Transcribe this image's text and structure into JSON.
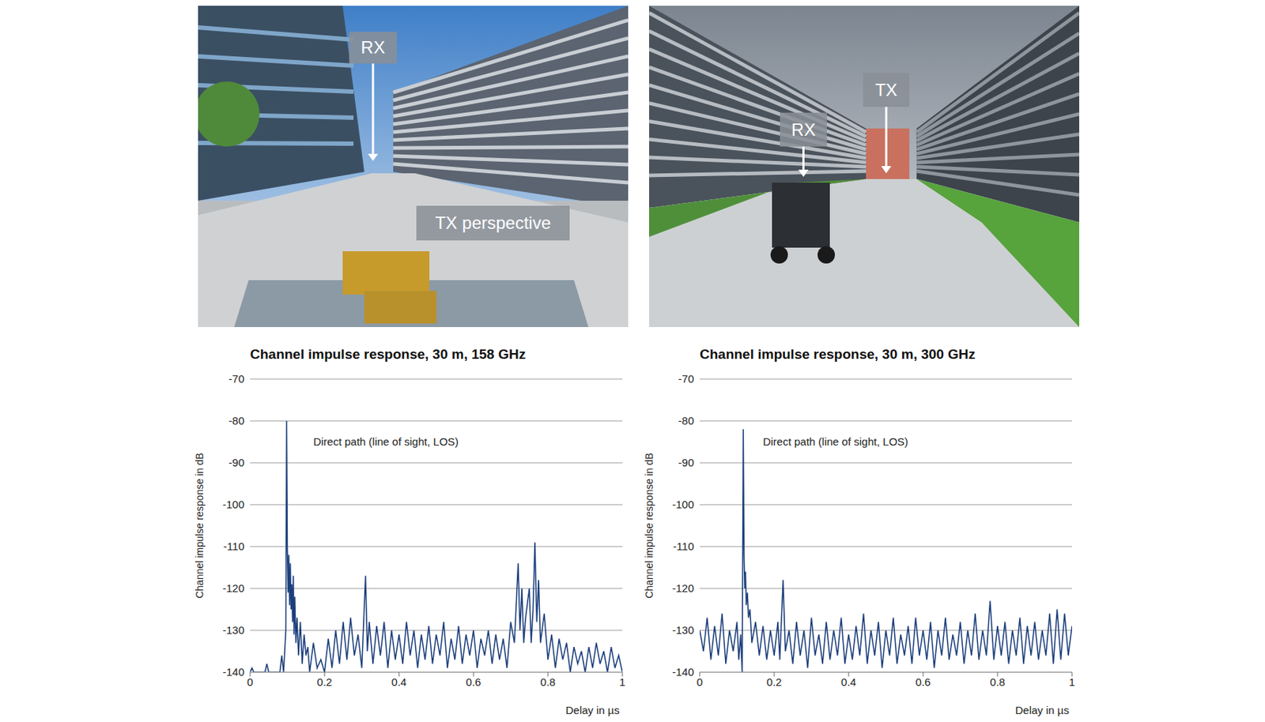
{
  "photos": [
    {
      "labels": [
        "RX",
        "TX perspective"
      ]
    },
    {
      "labels": [
        "RX",
        "TX"
      ]
    }
  ],
  "chart_data": [
    {
      "type": "line",
      "title": "Channel impulse response, 30 m, 158 GHz",
      "xlabel": "Delay in µs",
      "ylabel": "Channel impulse response in dB",
      "color": "#1c3f7c",
      "grid": true,
      "xlim": [
        0,
        1
      ],
      "xticks": [
        0,
        0.2,
        0.4,
        0.6,
        0.8,
        1
      ],
      "ylim": [
        -140,
        -70
      ],
      "yticks": [
        -140,
        -130,
        -120,
        -110,
        -100,
        -90,
        -80,
        -70
      ],
      "annotation": {
        "text": "Direct path (line of sight, LOS)",
        "x": 0.16,
        "y": -85
      },
      "x": [
        0,
        0.005,
        0.01,
        0.04,
        0.045,
        0.05,
        0.08,
        0.085,
        0.09,
        0.096,
        0.098,
        0.1,
        0.102,
        0.104,
        0.106,
        0.108,
        0.11,
        0.112,
        0.114,
        0.116,
        0.118,
        0.12,
        0.123,
        0.126,
        0.13,
        0.135,
        0.14,
        0.145,
        0.15,
        0.155,
        0.16,
        0.17,
        0.18,
        0.19,
        0.2,
        0.21,
        0.22,
        0.23,
        0.24,
        0.25,
        0.26,
        0.27,
        0.28,
        0.29,
        0.3,
        0.31,
        0.315,
        0.32,
        0.33,
        0.34,
        0.35,
        0.36,
        0.37,
        0.38,
        0.39,
        0.4,
        0.41,
        0.42,
        0.43,
        0.44,
        0.45,
        0.46,
        0.47,
        0.48,
        0.49,
        0.5,
        0.51,
        0.52,
        0.53,
        0.54,
        0.55,
        0.56,
        0.57,
        0.58,
        0.59,
        0.6,
        0.61,
        0.62,
        0.63,
        0.64,
        0.65,
        0.66,
        0.67,
        0.68,
        0.69,
        0.7,
        0.71,
        0.72,
        0.725,
        0.73,
        0.735,
        0.74,
        0.75,
        0.755,
        0.76,
        0.765,
        0.77,
        0.775,
        0.78,
        0.79,
        0.8,
        0.81,
        0.82,
        0.83,
        0.84,
        0.85,
        0.86,
        0.87,
        0.88,
        0.89,
        0.9,
        0.91,
        0.92,
        0.93,
        0.94,
        0.95,
        0.96,
        0.97,
        0.98,
        0.99,
        1
      ],
      "values": [
        -140,
        -139,
        -140,
        -140,
        -138,
        -140,
        -140,
        -136,
        -140,
        -130,
        -80,
        -110,
        -121,
        -112,
        -124,
        -114,
        -125,
        -119,
        -128,
        -117,
        -131,
        -122,
        -133,
        -127,
        -136,
        -128,
        -138,
        -131,
        -136,
        -134,
        -140,
        -133,
        -139,
        -137,
        -140,
        -132,
        -139,
        -130,
        -138,
        -128,
        -137,
        -127,
        -136,
        -131,
        -139,
        -117,
        -135,
        -128,
        -138,
        -129,
        -136,
        -128,
        -139,
        -130,
        -137,
        -131,
        -138,
        -128,
        -136,
        -130,
        -139,
        -131,
        -137,
        -129,
        -138,
        -131,
        -136,
        -128,
        -139,
        -132,
        -137,
        -129,
        -138,
        -131,
        -136,
        -130,
        -139,
        -132,
        -136,
        -130,
        -138,
        -131,
        -137,
        -132,
        -139,
        -128,
        -133,
        -114,
        -130,
        -120,
        -133,
        -127,
        -120,
        -133,
        -125,
        -109,
        -128,
        -118,
        -133,
        -126,
        -137,
        -131,
        -139,
        -132,
        -137,
        -133,
        -140,
        -134,
        -138,
        -135,
        -140,
        -134,
        -139,
        -133,
        -138,
        -135,
        -140,
        -134,
        -139,
        -136,
        -140
      ]
    },
    {
      "type": "line",
      "title": "Channel impulse response, 30 m, 300 GHz",
      "xlabel": "Delay in µs",
      "ylabel": "Channel impulse response in dB",
      "color": "#1c3f7c",
      "grid": true,
      "xlim": [
        0,
        1
      ],
      "xticks": [
        0,
        0.2,
        0.4,
        0.6,
        0.8,
        1
      ],
      "ylim": [
        -140,
        -70
      ],
      "yticks": [
        -140,
        -130,
        -120,
        -110,
        -100,
        -90,
        -80,
        -70
      ],
      "annotation": {
        "text": "Direct path (line of sight, LOS)",
        "x": 0.16,
        "y": -85
      },
      "x": [
        0,
        0.01,
        0.02,
        0.03,
        0.04,
        0.05,
        0.06,
        0.07,
        0.08,
        0.09,
        0.1,
        0.105,
        0.11,
        0.114,
        0.117,
        0.119,
        0.121,
        0.123,
        0.125,
        0.128,
        0.131,
        0.135,
        0.14,
        0.15,
        0.16,
        0.17,
        0.18,
        0.19,
        0.2,
        0.21,
        0.215,
        0.224,
        0.23,
        0.24,
        0.25,
        0.26,
        0.27,
        0.28,
        0.29,
        0.3,
        0.31,
        0.32,
        0.33,
        0.34,
        0.35,
        0.36,
        0.37,
        0.38,
        0.39,
        0.4,
        0.41,
        0.42,
        0.43,
        0.44,
        0.45,
        0.46,
        0.47,
        0.48,
        0.49,
        0.5,
        0.51,
        0.52,
        0.53,
        0.54,
        0.55,
        0.56,
        0.57,
        0.58,
        0.59,
        0.6,
        0.61,
        0.62,
        0.63,
        0.64,
        0.65,
        0.66,
        0.67,
        0.68,
        0.69,
        0.7,
        0.71,
        0.72,
        0.73,
        0.74,
        0.75,
        0.76,
        0.77,
        0.78,
        0.79,
        0.8,
        0.81,
        0.82,
        0.83,
        0.84,
        0.85,
        0.86,
        0.87,
        0.88,
        0.89,
        0.9,
        0.91,
        0.92,
        0.93,
        0.94,
        0.95,
        0.96,
        0.97,
        0.98,
        0.99,
        1
      ],
      "values": [
        -130,
        -135,
        -127,
        -137,
        -129,
        -136,
        -126,
        -138,
        -130,
        -135,
        -128,
        -137,
        -131,
        -140,
        -82,
        -112,
        -120,
        -116,
        -124,
        -121,
        -127,
        -125,
        -133,
        -128,
        -136,
        -129,
        -137,
        -130,
        -136,
        -128,
        -137,
        -118,
        -135,
        -130,
        -138,
        -128,
        -136,
        -130,
        -139,
        -127,
        -136,
        -131,
        -138,
        -128,
        -137,
        -130,
        -136,
        -127,
        -138,
        -131,
        -137,
        -129,
        -136,
        -126,
        -138,
        -130,
        -136,
        -128,
        -139,
        -130,
        -136,
        -127,
        -138,
        -131,
        -136,
        -129,
        -138,
        -127,
        -136,
        -130,
        -137,
        -128,
        -139,
        -130,
        -136,
        -127,
        -137,
        -131,
        -136,
        -128,
        -138,
        -130,
        -136,
        -126,
        -137,
        -130,
        -136,
        -123,
        -137,
        -129,
        -136,
        -128,
        -138,
        -130,
        -136,
        -127,
        -138,
        -129,
        -136,
        -128,
        -137,
        -130,
        -136,
        -126,
        -138,
        -125,
        -137,
        -126,
        -136,
        -129
      ]
    }
  ]
}
